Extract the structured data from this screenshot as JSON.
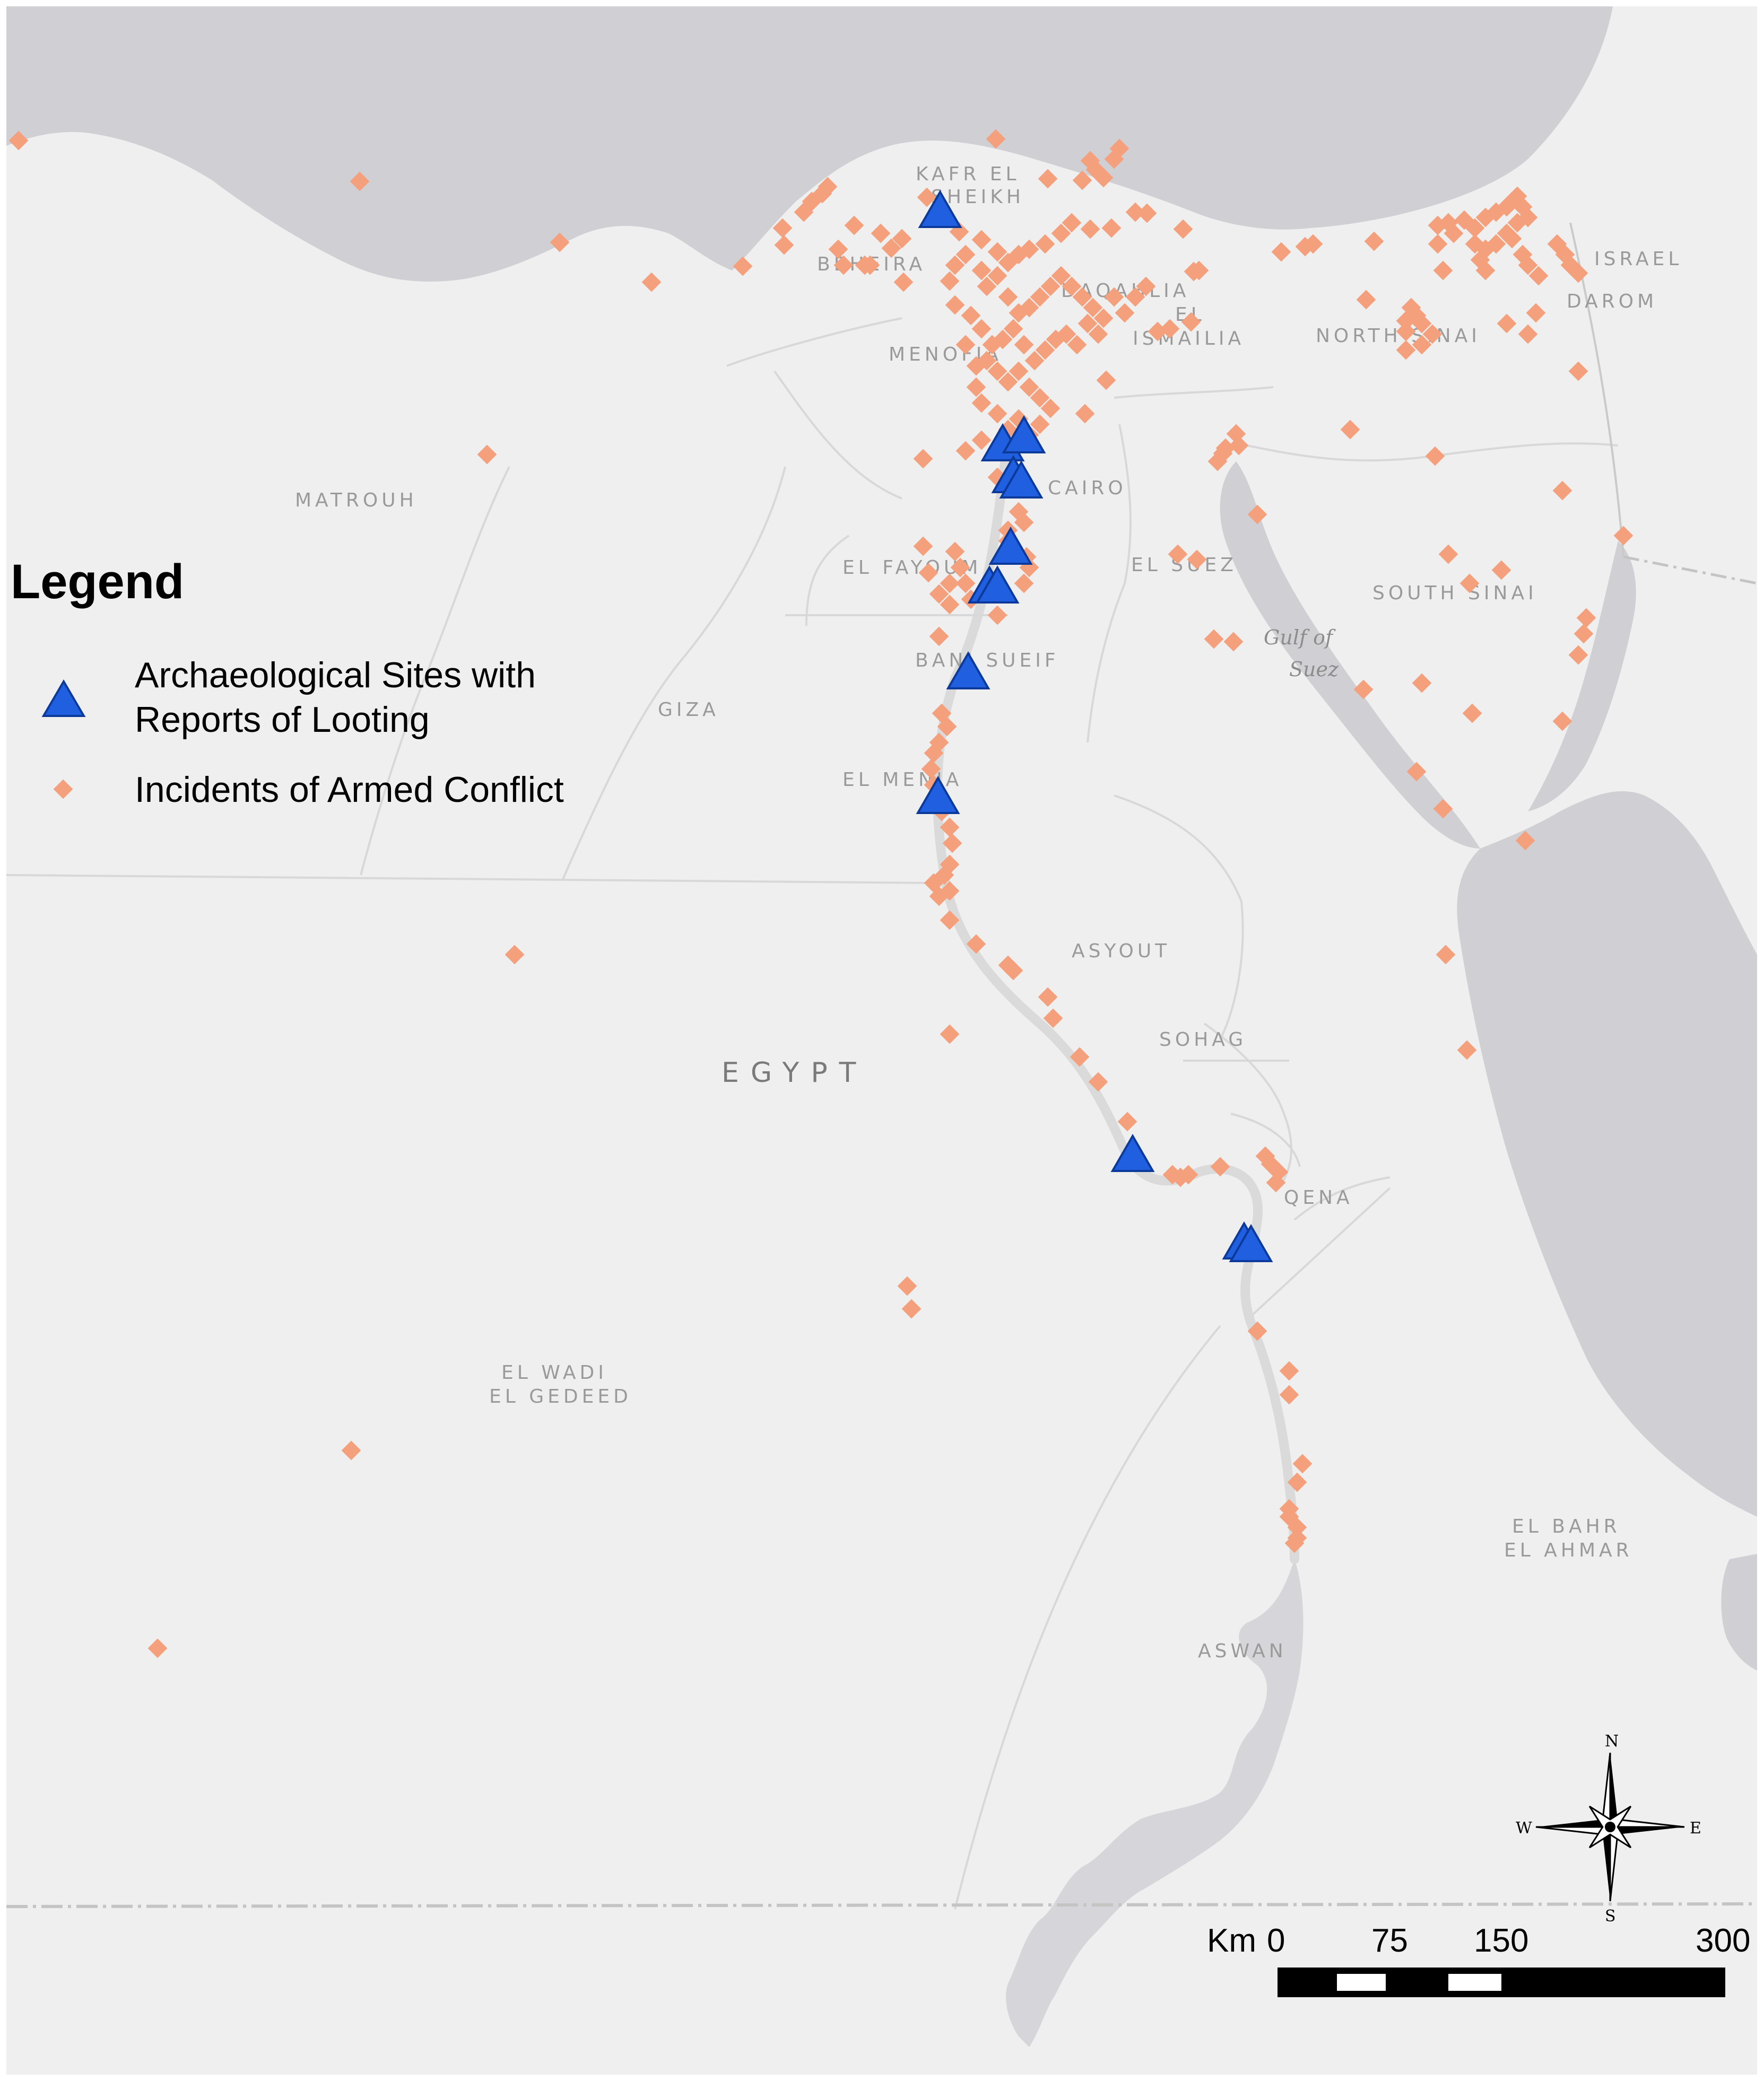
{
  "legend": {
    "title": "Legend",
    "items": [
      {
        "label_line1": "Archaeological Sites with",
        "label_line2": "Reports of Looting",
        "symbol": "triangle",
        "color": "#1f5fe0"
      },
      {
        "label_line1": "Incidents of Armed Conflict",
        "label_line2": "",
        "symbol": "diamond",
        "color": "#f4a07c"
      }
    ]
  },
  "regions": {
    "kafr_el_sheikh_1": "KAFR EL",
    "kafr_el_sheikh_2": "SHEIKH",
    "beheira": "BEHEIRA",
    "daqahlia": "DAQAHLIA",
    "el": "EL",
    "ismailia": "ISMAILIA",
    "menofia": "MENOFIA",
    "north_sinai": "NORTH SINAI",
    "israel": "ISRAEL",
    "darom": "DAROM",
    "matrouh": "MATROUH",
    "cairo": "CAIRO",
    "el_fayoum": "EL FAYOUM",
    "el_suez": "EL SUEZ",
    "south_sinai": "SOUTH SINAI",
    "gulf_1": "Gulf of",
    "gulf_2": "Suez",
    "bani_sueif": "BANI SUEIF",
    "giza": "GIZA",
    "el_menia": "EL MENIA",
    "asyout": "ASYOUT",
    "sohag": "SOHAG",
    "egypt": "EGYPT",
    "qena": "QENA",
    "el_wadi_1": "EL WADI",
    "el_wadi_2": "EL GEDEED",
    "el_bahr_1": "EL BAHR",
    "el_bahr_2": "EL AHMAR",
    "aswan": "ASWAN"
  },
  "scale_bar": {
    "unit": "Km",
    "ticks": [
      "0",
      "75",
      "150",
      "300"
    ]
  },
  "compass": {
    "n": "N",
    "s": "S",
    "e": "E",
    "w": "W"
  },
  "colors": {
    "land": "#efefef",
    "water": "#cfcfd4",
    "border": "#d8d8d8",
    "triangle": "#1f5fe0",
    "diamond": "#f4a07c"
  },
  "looting_sites_count": 11
}
